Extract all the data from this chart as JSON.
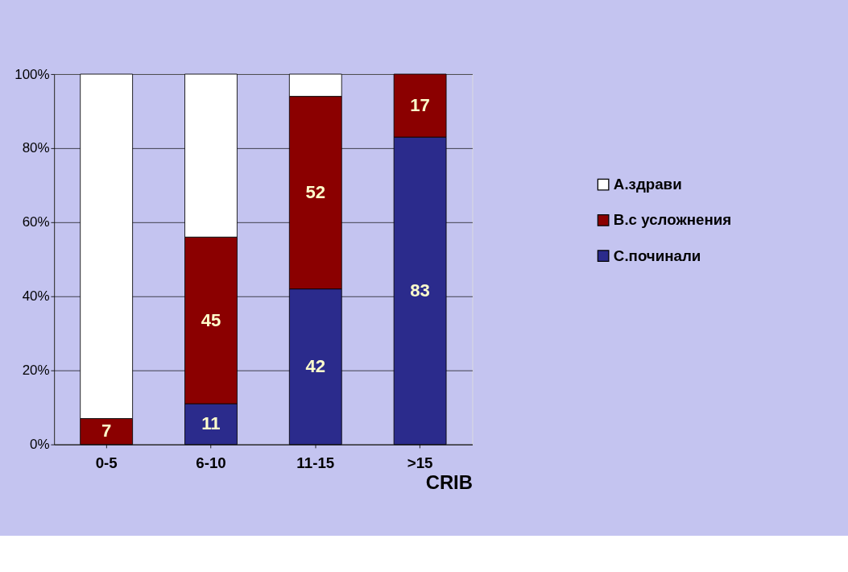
{
  "chart_data": {
    "type": "bar",
    "stacked": true,
    "xlabel": "CRIB",
    "categories": [
      "0-5",
      "6-10",
      "11-15",
      ">15"
    ],
    "series": [
      {
        "name": "С.починали",
        "color": "#2b2b8c",
        "values": [
          0,
          11,
          42,
          83
        ],
        "value_labels": [
          null,
          "11",
          "42",
          "83"
        ]
      },
      {
        "name": "В.с усложнения",
        "color": "#8b0000",
        "values": [
          7,
          45,
          52,
          17
        ],
        "value_labels": [
          "7",
          "45",
          "52",
          "17"
        ]
      },
      {
        "name": "А.здрави",
        "color": "#ffffff",
        "values": [
          93,
          44,
          6,
          0
        ],
        "value_labels": [
          null,
          null,
          null,
          null
        ]
      }
    ],
    "ylim": [
      0,
      100
    ],
    "yticks": [
      {
        "value": 0,
        "label": "0%"
      },
      {
        "value": 20,
        "label": "20%"
      },
      {
        "value": 40,
        "label": "40%"
      },
      {
        "value": 60,
        "label": "60%"
      },
      {
        "value": 80,
        "label": "80%"
      },
      {
        "value": 100,
        "label": "100%"
      }
    ],
    "grid": "y",
    "legend": "right"
  }
}
